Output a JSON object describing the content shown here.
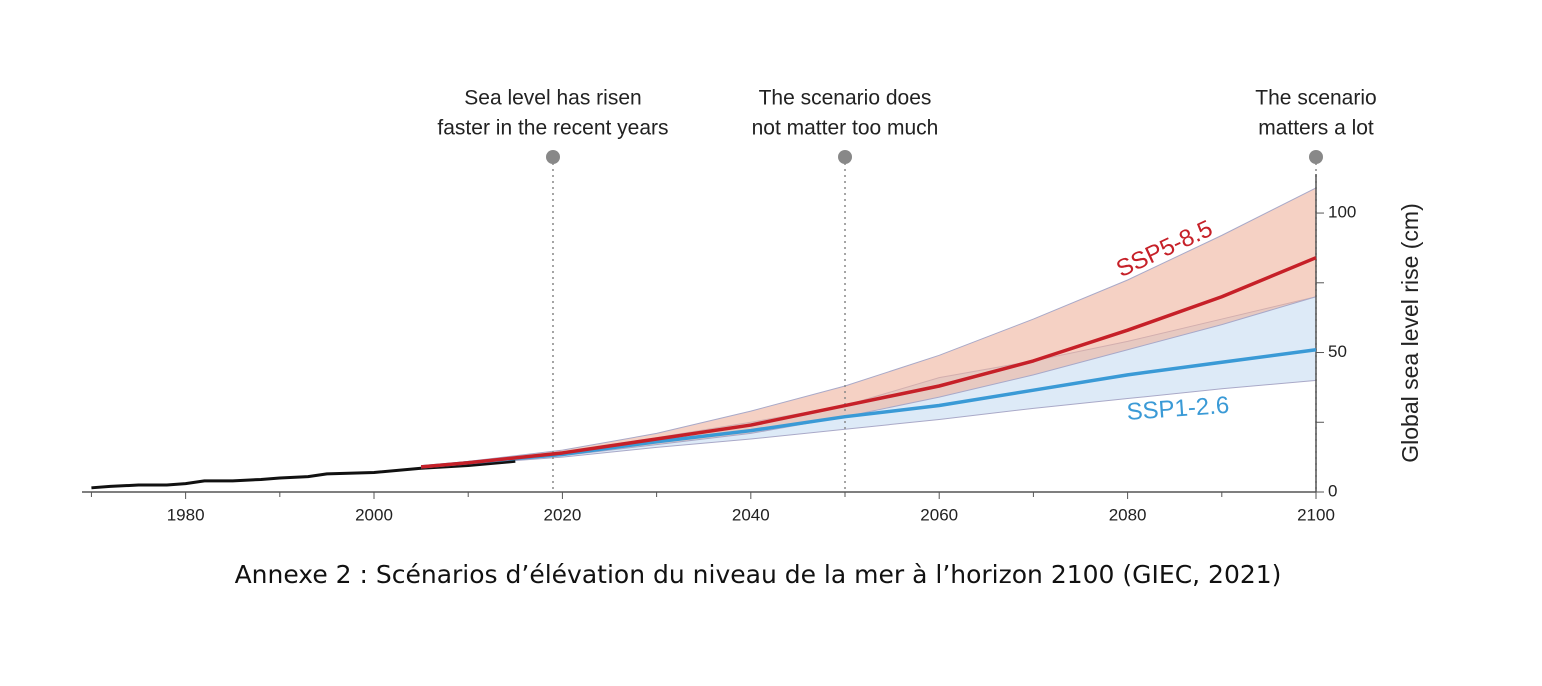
{
  "chart_data": {
    "type": "line",
    "caption": "Annexe 2 : Scénarios d’élévation du niveau de la mer à l’horizon 2100 (GIEC, 2021)",
    "y_label": "Global sea level rise (cm)",
    "xlim": [
      1969,
      2100
    ],
    "xticks": [
      1980,
      2000,
      2020,
      2040,
      2060,
      2080,
      2100
    ],
    "xticks_minor": [
      1970,
      1990,
      2010,
      2030,
      2050,
      2070,
      2090
    ],
    "ylim": [
      0,
      114
    ],
    "yticks": [
      0,
      50,
      100
    ],
    "yticks_minor": [
      25,
      75
    ],
    "series": [
      {
        "color": "#111111",
        "x": [
          1970,
          1972,
          1975,
          1978,
          1980,
          1982,
          1985,
          1988,
          1990,
          1993,
          1995,
          2000,
          2005,
          2010,
          2015
        ],
        "values": [
          1.5,
          2,
          2.5,
          2.5,
          3,
          4,
          4,
          4.5,
          5,
          5.5,
          6.5,
          7,
          8.5,
          9.5,
          11
        ]
      },
      {
        "name": "SSP1-2.6",
        "color": "#3a9ad6",
        "band_color": "#c6dcf2",
        "x": [
          2005,
          2010,
          2020,
          2030,
          2040,
          2050,
          2060,
          2070,
          2080,
          2090,
          2100
        ],
        "values": [
          9,
          10.5,
          13.5,
          18,
          22,
          27,
          31,
          36.5,
          42,
          46.5,
          51
        ],
        "low": [
          9,
          10,
          12.5,
          16,
          19,
          22.5,
          26,
          30,
          33.5,
          37,
          40
        ],
        "high": [
          9,
          11,
          14.5,
          19.5,
          25,
          31,
          41,
          47,
          54,
          62,
          70
        ]
      },
      {
        "name": "SSP5-8.5",
        "color": "#c62028",
        "band_color": "#eeb39c",
        "x": [
          2005,
          2010,
          2020,
          2030,
          2040,
          2050,
          2060,
          2070,
          2080,
          2090,
          2100
        ],
        "values": [
          9,
          10.5,
          14,
          19,
          24,
          31,
          38,
          47,
          58,
          70,
          84
        ],
        "low": [
          9,
          10,
          13,
          17,
          21,
          27,
          34,
          42,
          51,
          60,
          70
        ],
        "high": [
          9,
          11,
          15,
          21,
          29,
          38,
          49,
          62,
          76,
          92,
          109
        ]
      }
    ],
    "annotations": [
      {
        "x": 2019,
        "lines": [
          "Sea level has risen",
          "faster in the recent years"
        ]
      },
      {
        "x": 2050,
        "lines": [
          "The scenario does",
          "not matter too much"
        ]
      },
      {
        "x": 2100,
        "lines": [
          "The scenario",
          "matters a lot"
        ]
      }
    ]
  }
}
